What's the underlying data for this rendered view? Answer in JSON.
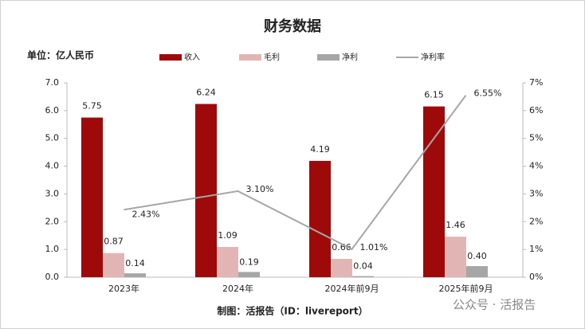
{
  "chart_data": {
    "type": "bar",
    "title": "财务数据",
    "unit_label": "单位：亿人民币",
    "footer": "制图：活报告（ID：livereport）",
    "watermark": "公众号 · 活报告",
    "categories": [
      "2023年",
      "2024年",
      "2024年前9月",
      "2025年前9月"
    ],
    "series": [
      {
        "name": "收入",
        "color": "#9e0a0a",
        "values": [
          5.75,
          6.24,
          4.19,
          6.15
        ]
      },
      {
        "name": "毛利",
        "color": "#e2b5b5",
        "values": [
          0.87,
          1.09,
          0.66,
          1.46
        ]
      },
      {
        "name": "净利",
        "color": "#a6a6a6",
        "values": [
          0.14,
          0.19,
          0.04,
          0.4
        ],
        "value_labels": [
          "0.14",
          "0.19",
          "0.04",
          "0.40"
        ]
      },
      {
        "name": "净利率",
        "color": "#a6a6a6",
        "type": "line",
        "axis": "y2",
        "values": [
          2.43,
          3.1,
          1.01,
          6.55
        ],
        "value_labels": [
          "2.43%",
          "3.10%",
          "1.01%",
          "6.55%"
        ]
      }
    ],
    "ylim": [
      0,
      7
    ],
    "yticks": [
      {
        "value": 0,
        "label": "0.0"
      },
      {
        "value": 1,
        "label": "1.0"
      },
      {
        "value": 2,
        "label": "2.0"
      },
      {
        "value": 3,
        "label": "3.0"
      },
      {
        "value": 4,
        "label": "4.0"
      },
      {
        "value": 5,
        "label": "5.0"
      },
      {
        "value": 6,
        "label": "6.0"
      },
      {
        "value": 7,
        "label": "7.0"
      }
    ],
    "y2lim": [
      0,
      7
    ],
    "y2ticks": [
      {
        "value": 0,
        "label": "0%"
      },
      {
        "value": 1,
        "label": "1%"
      },
      {
        "value": 2,
        "label": "2%"
      },
      {
        "value": 3,
        "label": "3%"
      },
      {
        "value": 4,
        "label": "4%"
      },
      {
        "value": 5,
        "label": "5%"
      },
      {
        "value": 6,
        "label": "6%"
      },
      {
        "value": 7,
        "label": "7%"
      }
    ],
    "grid": false
  }
}
